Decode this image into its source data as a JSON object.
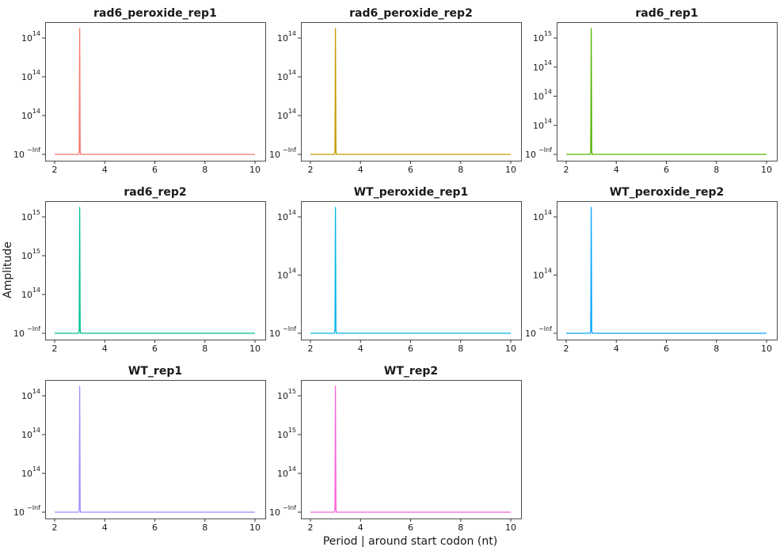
{
  "chart_data": {
    "type": "line",
    "layout": "facet-grid 3x3",
    "xlabel": "Period | around start codon (nt)",
    "ylabel": "Amplitude",
    "x_scale": "linear",
    "y_scale": "log",
    "xlim": [
      2,
      10
    ],
    "x_ticks": [
      "2",
      "4",
      "6",
      "8",
      "10"
    ],
    "panels": [
      {
        "title": "rad6_peroxide_rep1",
        "color": "#F8766D",
        "y_tick_labels": [
          {
            "base": "10",
            "exp": "14"
          },
          {
            "base": "10",
            "exp": "14"
          },
          {
            "base": "10",
            "exp": "14"
          },
          {
            "base": "10",
            "exp": "−Inf"
          }
        ],
        "peak": {
          "x": 3,
          "y_fraction": 1.0
        }
      },
      {
        "title": "rad6_peroxide_rep2",
        "color": "#C49A00",
        "y_tick_labels": [
          {
            "base": "10",
            "exp": "14"
          },
          {
            "base": "10",
            "exp": "14"
          },
          {
            "base": "10",
            "exp": "14"
          },
          {
            "base": "10",
            "exp": "−Inf"
          }
        ],
        "peak": {
          "x": 3,
          "y_fraction": 1.0
        }
      },
      {
        "title": "rad6_rep1",
        "color": "#53B400",
        "y_tick_labels": [
          {
            "base": "10",
            "exp": "15"
          },
          {
            "base": "10",
            "exp": "14"
          },
          {
            "base": "10",
            "exp": "14"
          },
          {
            "base": "10",
            "exp": "14"
          },
          {
            "base": "10",
            "exp": "−Inf"
          }
        ],
        "peak": {
          "x": 3,
          "y_fraction": 1.0
        }
      },
      {
        "title": "rad6_rep2",
        "color": "#00C094",
        "y_tick_labels": [
          {
            "base": "10",
            "exp": "15"
          },
          {
            "base": "10",
            "exp": "15"
          },
          {
            "base": "10",
            "exp": "14"
          },
          {
            "base": "10",
            "exp": "−Inf"
          }
        ],
        "peak": {
          "x": 3,
          "y_fraction": 1.0
        }
      },
      {
        "title": "WT_peroxide_rep1",
        "color": "#00B6EB",
        "y_tick_labels": [
          {
            "base": "10",
            "exp": "14"
          },
          {
            "base": "10",
            "exp": "14"
          },
          {
            "base": "10",
            "exp": "−Inf"
          }
        ],
        "peak": {
          "x": 3,
          "y_fraction": 1.0
        }
      },
      {
        "title": "WT_peroxide_rep2",
        "color": "#06A4FF",
        "y_tick_labels": [
          {
            "base": "10",
            "exp": "14"
          },
          {
            "base": "10",
            "exp": "14"
          },
          {
            "base": "10",
            "exp": "−Inf"
          }
        ],
        "peak": {
          "x": 3,
          "y_fraction": 1.0
        }
      },
      {
        "title": "WT_rep1",
        "color": "#A58AFF",
        "y_tick_labels": [
          {
            "base": "10",
            "exp": "14"
          },
          {
            "base": "10",
            "exp": "14"
          },
          {
            "base": "10",
            "exp": "14"
          },
          {
            "base": "10",
            "exp": "−Inf"
          }
        ],
        "peak": {
          "x": 3,
          "y_fraction": 1.0
        }
      },
      {
        "title": "WT_rep2",
        "color": "#FB61D7",
        "y_tick_labels": [
          {
            "base": "10",
            "exp": "15"
          },
          {
            "base": "10",
            "exp": "15"
          },
          {
            "base": "10",
            "exp": "14"
          },
          {
            "base": "10",
            "exp": "−Inf"
          }
        ],
        "peak": {
          "x": 3,
          "y_fraction": 1.0
        }
      }
    ]
  }
}
